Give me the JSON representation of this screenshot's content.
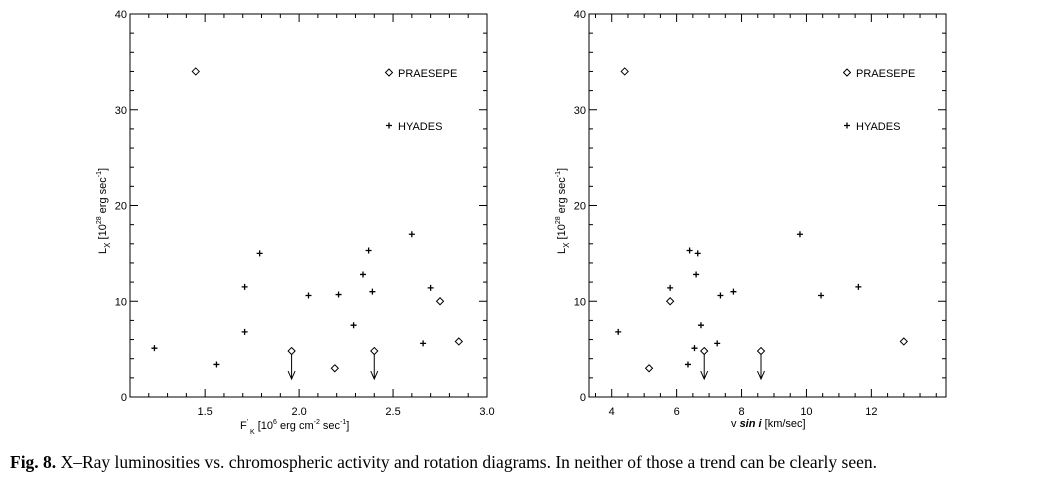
{
  "caption": {
    "label": "Fig. 8.",
    "text": "X–Ray luminosities vs. chromospheric activity and rotation diagrams. In neither of those a trend can be clearly seen."
  },
  "chart_data": [
    {
      "type": "scatter",
      "xlabel": "F'K [10^6 erg cm^-2 sec^-1]",
      "ylabel": "Lx [10^28 erg sec^-1]",
      "xlim": [
        1.1,
        3.0
      ],
      "ylim": [
        0,
        40
      ],
      "xticks": [
        "1.5",
        "2.0",
        "2.5",
        "3.0"
      ],
      "yticks": [
        "0",
        "10",
        "20",
        "30",
        "40"
      ],
      "legend": [
        "PRAESEPE",
        "HYADES"
      ],
      "series": [
        {
          "name": "PRAESEPE",
          "points": [
            [
              1.45,
              34
            ],
            [
              2.19,
              3
            ],
            [
              2.75,
              10
            ],
            [
              2.85,
              5.8
            ]
          ],
          "upper_limits": [
            [
              1.96,
              4.8
            ],
            [
              2.4,
              4.8
            ]
          ]
        },
        {
          "name": "HYADES",
          "points": [
            [
              1.23,
              5.1
            ],
            [
              1.56,
              3.4
            ],
            [
              1.71,
              11.5
            ],
            [
              1.71,
              6.8
            ],
            [
              1.79,
              15
            ],
            [
              2.05,
              10.6
            ],
            [
              2.21,
              10.7
            ],
            [
              2.29,
              7.5
            ],
            [
              2.34,
              12.8
            ],
            [
              2.37,
              15.3
            ],
            [
              2.39,
              11
            ],
            [
              2.6,
              17
            ],
            [
              2.66,
              5.6
            ],
            [
              2.7,
              11.4
            ]
          ]
        }
      ]
    },
    {
      "type": "scatter",
      "xlabel": "v sin i [km/sec]",
      "ylabel": "Lx [10^28 erg sec^-1]",
      "xlim": [
        3.3,
        14.3
      ],
      "ylim": [
        0,
        40
      ],
      "xticks": [
        "4",
        "6",
        "8",
        "10",
        "12"
      ],
      "yticks": [
        "0",
        "10",
        "20",
        "30",
        "40"
      ],
      "legend": [
        "PRAESEPE",
        "HYADES"
      ],
      "series": [
        {
          "name": "PRAESEPE",
          "points": [
            [
              4.4,
              34
            ],
            [
              5.15,
              3
            ],
            [
              5.8,
              10
            ],
            [
              13.0,
              5.8
            ]
          ],
          "upper_limits": [
            [
              6.85,
              4.8
            ],
            [
              8.6,
              4.8
            ]
          ]
        },
        {
          "name": "HYADES",
          "points": [
            [
              4.2,
              6.8
            ],
            [
              5.8,
              11.4
            ],
            [
              6.35,
              3.4
            ],
            [
              6.4,
              15.3
            ],
            [
              6.55,
              5.1
            ],
            [
              6.6,
              12.8
            ],
            [
              6.65,
              15
            ],
            [
              6.75,
              7.5
            ],
            [
              7.25,
              5.6
            ],
            [
              7.35,
              10.6
            ],
            [
              7.75,
              11
            ],
            [
              9.8,
              17
            ],
            [
              10.45,
              10.6
            ],
            [
              11.6,
              11.5
            ]
          ]
        }
      ]
    }
  ]
}
